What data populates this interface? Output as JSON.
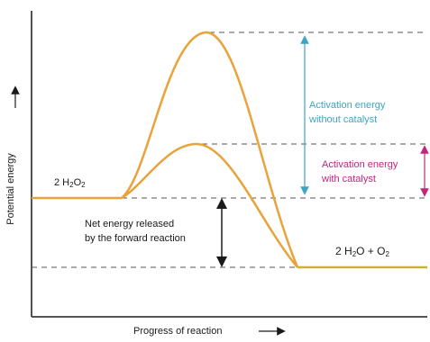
{
  "axes": {
    "y_label": "Potential energy",
    "x_label": "Progress of reaction"
  },
  "reactant": {
    "coef": "2 H",
    "sub1": "2",
    "mid": "O",
    "sub2": "2"
  },
  "product": {
    "coef": "2 H",
    "sub1": "2",
    "mid": "O + O",
    "sub2": "2"
  },
  "annotations": {
    "without_catalyst_line1": "Activation energy",
    "without_catalyst_line2": "without catalyst",
    "with_catalyst_line1": "Activation energy",
    "with_catalyst_line2": "with catalyst",
    "net_energy_line1": "Net energy released",
    "net_energy_line2": "by the forward reaction"
  },
  "colors": {
    "curve": "#e8a33a",
    "axis": "#1a1a1a",
    "dashed": "#555555",
    "cyan": "#3aa6c4",
    "magenta": "#c2257e",
    "product_line": "#c9b23a"
  }
}
